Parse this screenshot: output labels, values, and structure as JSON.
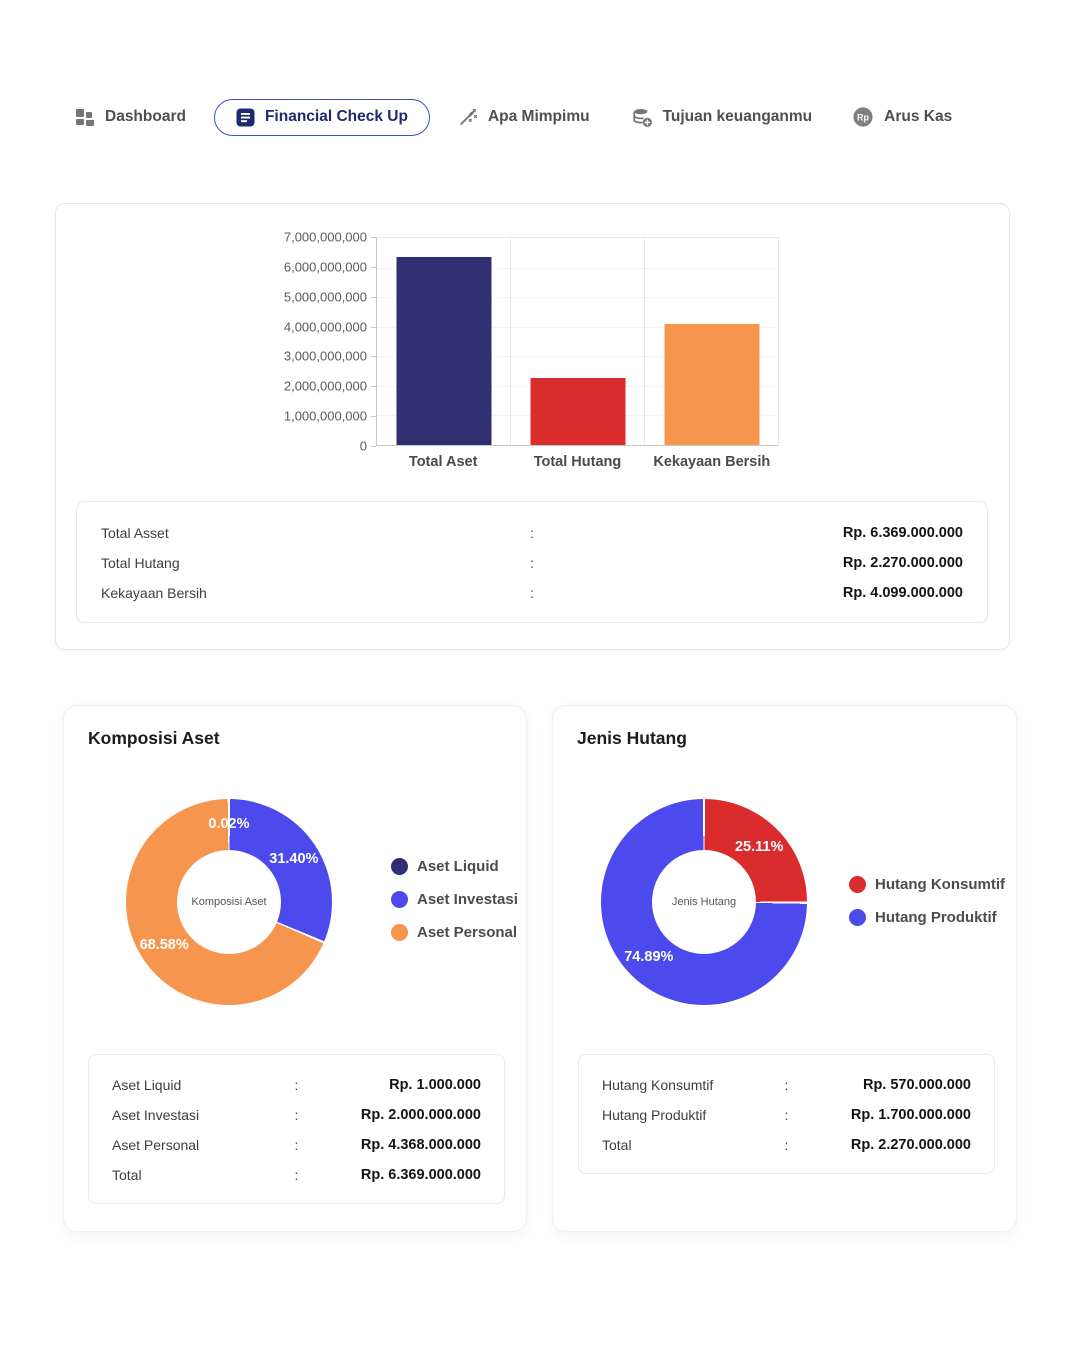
{
  "nav": {
    "items": [
      {
        "label": "Dashboard",
        "icon": "dashboard-icon",
        "active": false
      },
      {
        "label": "Financial Check Up",
        "icon": "document-icon",
        "active": true
      },
      {
        "label": "Apa Mimpimu",
        "icon": "wand-icon",
        "active": false
      },
      {
        "label": "Tujuan keuanganmu",
        "icon": "coins-plus-icon",
        "active": false
      },
      {
        "label": "Arus Kas",
        "icon": "rp-icon",
        "active": false
      }
    ]
  },
  "colors": {
    "navy": "#312E72",
    "red": "#DA2C2C",
    "orange": "#F6954E",
    "blue": "#4C4AEC",
    "active_pill_border": "#3E4EC3",
    "active_text": "#1D2B6E",
    "nav_gray": "#4f4f4f"
  },
  "chart_data": [
    {
      "type": "bar",
      "title": "",
      "categories": [
        "Total Aset",
        "Total Hutang",
        "Kekayaan Bersih"
      ],
      "values": [
        6369000000,
        2270000000,
        4099000000
      ],
      "colors": [
        "#312E72",
        "#DA2C2C",
        "#F6954E"
      ],
      "xlabel": "",
      "ylabel": "",
      "ylim": [
        0,
        7000000000
      ],
      "yticks": [
        "7,000,000,000",
        "6,000,000,000",
        "5,000,000,000",
        "4,000,000,000",
        "3,000,000,000",
        "2,000,000,000",
        "1,000,000,000",
        "0"
      ],
      "grid": true,
      "legend_position": "none"
    },
    {
      "type": "pie",
      "title": "Komposisi Aset",
      "center_label": "Komposisi Aset",
      "slices": [
        {
          "label": "Aset Investasi",
          "pct": 31.4,
          "display": "31.40%",
          "color": "#4C4AEC"
        },
        {
          "label": "Aset Personal",
          "pct": 68.58,
          "display": "68.58%",
          "color": "#F6954E"
        },
        {
          "label": "Aset Liquid",
          "pct": 0.02,
          "display": "0.02%",
          "color": "#312E72"
        }
      ],
      "legend": [
        {
          "label": "Aset Liquid",
          "color": "#312E72"
        },
        {
          "label": "Aset Investasi",
          "color": "#4C4AEC"
        },
        {
          "label": "Aset Personal",
          "color": "#F6954E"
        }
      ],
      "legend_position": "right"
    },
    {
      "type": "pie",
      "title": "Jenis Hutang",
      "center_label": "Jenis Hutang",
      "slices": [
        {
          "label": "Hutang Konsumtif",
          "pct": 25.11,
          "display": "25.11%",
          "color": "#DA2C2C"
        },
        {
          "label": "Hutang Produktif",
          "pct": 74.89,
          "display": "74.89%",
          "color": "#4C4AEC"
        }
      ],
      "legend": [
        {
          "label": "Hutang Konsumtif",
          "color": "#DA2C2C"
        },
        {
          "label": "Hutang Produktif",
          "color": "#4C4AEC"
        }
      ],
      "legend_position": "right"
    }
  ],
  "summary_table": {
    "rows": [
      {
        "label": "Total Asset",
        "colon": ":",
        "value": "Rp. 6.369.000.000"
      },
      {
        "label": "Total Hutang",
        "colon": ":",
        "value": "Rp. 2.270.000.000"
      },
      {
        "label": "Kekayaan Bersih",
        "colon": ":",
        "value": "Rp. 4.099.000.000"
      }
    ]
  },
  "asset_card": {
    "title": "Komposisi Aset",
    "table": {
      "rows": [
        {
          "label": "Aset Liquid",
          "colon": ":",
          "value": "Rp. 1.000.000"
        },
        {
          "label": "Aset Investasi",
          "colon": ":",
          "value": "Rp. 2.000.000.000"
        },
        {
          "label": "Aset Personal",
          "colon": ":",
          "value": "Rp. 4.368.000.000"
        },
        {
          "label": "Total",
          "colon": ":",
          "value": "Rp. 6.369.000.000"
        }
      ]
    }
  },
  "debt_card": {
    "title": "Jenis Hutang",
    "table": {
      "rows": [
        {
          "label": "Hutang Konsumtif",
          "colon": ":",
          "value": "Rp. 570.000.000"
        },
        {
          "label": "Hutang Produktif",
          "colon": ":",
          "value": "Rp. 1.700.000.000"
        },
        {
          "label": "Total",
          "colon": ":",
          "value": "Rp. 2.270.000.000"
        }
      ]
    }
  }
}
